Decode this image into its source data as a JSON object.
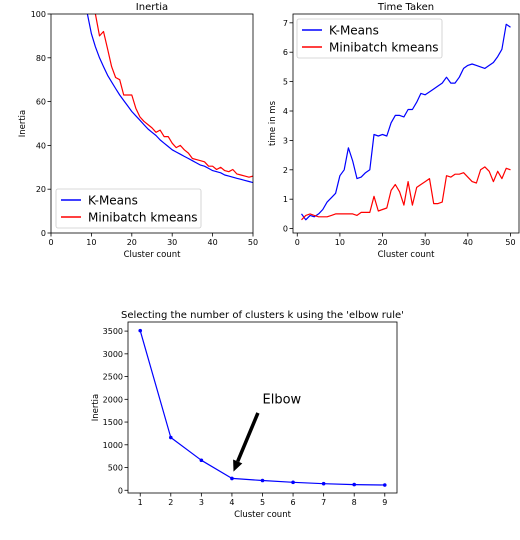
{
  "chart_data": [
    {
      "type": "line",
      "title": "Inertia",
      "xlabel": "Cluster count",
      "ylabel": "Inertia",
      "xlim": [
        0,
        50
      ],
      "ylim": [
        0,
        100
      ],
      "xticks": [
        0,
        10,
        20,
        30,
        40,
        50
      ],
      "yticks": [
        0,
        20,
        40,
        60,
        80,
        100
      ],
      "legend": "lower-left",
      "grid": false,
      "series": [
        {
          "name": "K-Means",
          "color": "#0000ff",
          "x": [
            9,
            10,
            11,
            12,
            13,
            14,
            15,
            16,
            17,
            18,
            19,
            20,
            21,
            22,
            23,
            24,
            25,
            26,
            27,
            28,
            29,
            30,
            31,
            32,
            33,
            34,
            35,
            36,
            37,
            38,
            39,
            40,
            41,
            42,
            43,
            44,
            45,
            46,
            47,
            48,
            49,
            50
          ],
          "y": [
            100,
            91,
            85,
            80,
            76,
            72,
            69,
            66,
            63,
            60.5,
            58,
            55.5,
            53.5,
            51.5,
            49.5,
            47.5,
            46,
            44.5,
            42.5,
            41,
            39.5,
            38,
            37,
            36,
            35,
            34,
            33,
            32,
            31,
            30.5,
            29.5,
            28.5,
            28,
            27.5,
            26.5,
            26,
            25.5,
            25,
            24.5,
            24,
            23.5,
            23
          ]
        },
        {
          "name": "Minibatch kmeans",
          "color": "#ff0000",
          "x": [
            11,
            12,
            13,
            14,
            15,
            16,
            17,
            18,
            19,
            20,
            21,
            22,
            23,
            24,
            25,
            26,
            27,
            28,
            29,
            30,
            31,
            32,
            33,
            34,
            35,
            36,
            37,
            38,
            39,
            40,
            41,
            42,
            43,
            44,
            45,
            46,
            47,
            48,
            49,
            50
          ],
          "y": [
            100,
            90,
            92,
            84,
            76,
            71,
            70,
            63,
            63,
            63,
            57,
            53,
            51,
            49.5,
            48,
            46,
            47,
            44,
            44,
            41,
            39,
            40,
            38,
            36.5,
            34,
            33.5,
            33,
            32.5,
            30.5,
            30.5,
            29,
            30,
            28.5,
            28,
            29,
            27,
            26.5,
            26,
            25.5,
            26
          ]
        }
      ]
    },
    {
      "type": "line",
      "title": "Time Taken",
      "xlabel": "Cluster count",
      "ylabel": "time in ms",
      "xlim": [
        -1,
        52
      ],
      "ylim": [
        -0.15,
        7.3
      ],
      "xticks": [
        0,
        10,
        20,
        30,
        40,
        50
      ],
      "yticks": [
        0,
        1,
        2,
        3,
        4,
        5,
        6,
        7
      ],
      "legend": "top-left",
      "grid": false,
      "series": [
        {
          "name": "K-Means",
          "color": "#0000ff",
          "x": [
            1,
            2,
            3,
            4,
            5,
            6,
            7,
            8,
            9,
            10,
            11,
            12,
            13,
            14,
            15,
            16,
            17,
            18,
            19,
            20,
            21,
            22,
            23,
            24,
            25,
            26,
            27,
            28,
            29,
            30,
            31,
            32,
            33,
            34,
            35,
            36,
            37,
            38,
            39,
            40,
            41,
            42,
            43,
            44,
            45,
            46,
            47,
            48,
            49,
            50
          ],
          "y": [
            0.5,
            0.3,
            0.45,
            0.4,
            0.5,
            0.65,
            0.9,
            1.05,
            1.2,
            1.8,
            2.0,
            2.75,
            2.3,
            1.7,
            1.75,
            1.9,
            2.0,
            3.2,
            3.15,
            3.2,
            3.15,
            3.6,
            3.85,
            3.85,
            3.8,
            4.05,
            4.05,
            4.3,
            4.6,
            4.55,
            4.65,
            4.75,
            4.85,
            4.95,
            5.15,
            4.95,
            4.95,
            5.15,
            5.45,
            5.55,
            5.6,
            5.55,
            5.5,
            5.45,
            5.55,
            5.65,
            5.85,
            6.1,
            6.95,
            6.85
          ]
        },
        {
          "name": "Minibatch kmeans",
          "color": "#ff0000",
          "x": [
            1,
            2,
            3,
            4,
            5,
            6,
            7,
            8,
            9,
            10,
            11,
            12,
            13,
            14,
            15,
            16,
            17,
            18,
            19,
            20,
            21,
            22,
            23,
            24,
            25,
            26,
            27,
            28,
            29,
            30,
            31,
            32,
            33,
            34,
            35,
            36,
            37,
            38,
            39,
            40,
            41,
            42,
            43,
            44,
            45,
            46,
            47,
            48,
            49,
            50
          ],
          "y": [
            0.3,
            0.45,
            0.5,
            0.45,
            0.4,
            0.4,
            0.4,
            0.45,
            0.5,
            0.5,
            0.5,
            0.5,
            0.5,
            0.45,
            0.55,
            0.55,
            0.55,
            1.1,
            0.6,
            0.65,
            0.7,
            1.3,
            1.5,
            1.25,
            0.8,
            1.6,
            0.8,
            1.4,
            1.5,
            1.6,
            1.7,
            0.85,
            0.85,
            0.9,
            1.8,
            1.75,
            1.85,
            1.85,
            1.9,
            1.75,
            1.6,
            1.55,
            2.0,
            2.1,
            1.95,
            1.6,
            1.95,
            1.7,
            2.05,
            2.0
          ]
        }
      ]
    },
    {
      "type": "line",
      "title": "Selecting the number of clusters k using the 'elbow rule'",
      "xlabel": "Cluster count",
      "ylabel": "Inertia",
      "xlim": [
        0.6,
        9.4
      ],
      "ylim": [
        -60,
        3700
      ],
      "xticks": [
        1,
        2,
        3,
        4,
        5,
        6,
        7,
        8,
        9
      ],
      "yticks": [
        0,
        500,
        1000,
        1500,
        2000,
        2500,
        3000,
        3500
      ],
      "grid": false,
      "series": [
        {
          "color": "#0000ff",
          "marker": "dot",
          "x": [
            1,
            2,
            3,
            4,
            5,
            6,
            7,
            8,
            9
          ],
          "y": [
            3510,
            1160,
            660,
            260,
            215,
            175,
            145,
            125,
            115
          ]
        }
      ],
      "annotation": {
        "text": "Elbow",
        "text_at": [
          5.0,
          2000
        ],
        "arrow_from": [
          4.85,
          1700
        ],
        "arrow_to": [
          4.05,
          410
        ]
      }
    }
  ]
}
